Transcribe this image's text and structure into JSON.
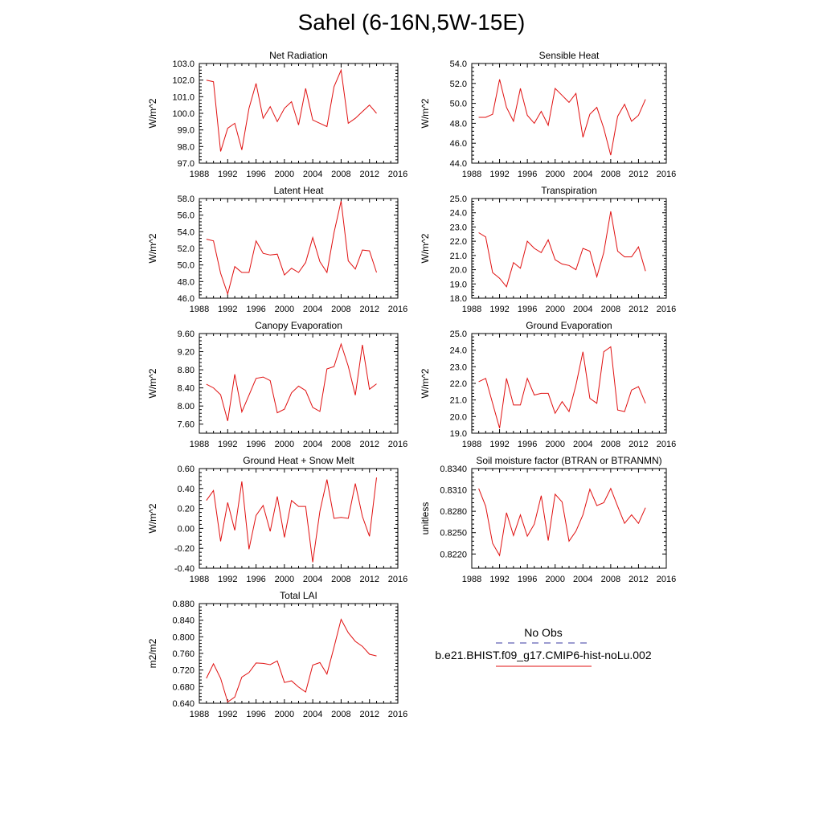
{
  "title": "Sahel (6-16N,5W-15E)",
  "legend": {
    "entries": [
      {
        "label": "No Obs",
        "color": "#3a3aa0",
        "dash": true
      },
      {
        "label": "b.e21.BHIST.f09_g17.CMIP6-hist-noLu.002",
        "color": "#e01010",
        "dash": false
      }
    ]
  },
  "chart_data": [
    {
      "type": "line",
      "title": "Net Radiation",
      "ylabel": "W/m^2",
      "xlim": [
        1988,
        2016
      ],
      "xticks": [
        "1988",
        "1992",
        "1996",
        "2000",
        "2004",
        "2008",
        "2012",
        "2016"
      ],
      "ylim": [
        97.0,
        103.0
      ],
      "yticks": [
        "97.0",
        "98.0",
        "99.0",
        "100.0",
        "101.0",
        "102.0",
        "103.0"
      ],
      "x": [
        1989,
        1990,
        1991,
        1992,
        1993,
        1994,
        1995,
        1996,
        1997,
        1998,
        1999,
        2000,
        2001,
        2002,
        2003,
        2004,
        2005,
        2006,
        2007,
        2008,
        2009,
        2010,
        2011,
        2012,
        2013
      ],
      "series": [
        {
          "color": "#e01010",
          "values": [
            102.0,
            101.9,
            97.7,
            99.1,
            99.4,
            97.8,
            100.3,
            101.8,
            99.7,
            100.4,
            99.5,
            100.3,
            100.7,
            99.3,
            101.5,
            99.6,
            99.4,
            99.2,
            101.6,
            102.6,
            99.4,
            99.7,
            100.1,
            100.5,
            100.0
          ]
        }
      ]
    },
    {
      "type": "line",
      "title": "Sensible Heat",
      "ylabel": "W/m^2",
      "xlim": [
        1988,
        2016
      ],
      "xticks": [
        "1988",
        "1992",
        "1996",
        "2000",
        "2004",
        "2008",
        "2012",
        "2016"
      ],
      "ylim": [
        44.0,
        54.0
      ],
      "yticks": [
        "44.0",
        "46.0",
        "48.0",
        "50.0",
        "52.0",
        "54.0"
      ],
      "x": [
        1989,
        1990,
        1991,
        1992,
        1993,
        1994,
        1995,
        1996,
        1997,
        1998,
        1999,
        2000,
        2001,
        2002,
        2003,
        2004,
        2005,
        2006,
        2007,
        2008,
        2009,
        2010,
        2011,
        2012,
        2013
      ],
      "series": [
        {
          "color": "#e01010",
          "values": [
            48.6,
            48.6,
            48.9,
            52.4,
            49.6,
            48.2,
            51.5,
            48.8,
            48.0,
            49.2,
            47.8,
            51.5,
            50.8,
            50.1,
            51.0,
            46.6,
            48.9,
            49.6,
            47.5,
            44.8,
            48.7,
            49.9,
            48.2,
            48.8,
            50.4
          ]
        }
      ]
    },
    {
      "type": "line",
      "title": "Latent Heat",
      "ylabel": "W/m^2",
      "xlim": [
        1988,
        2016
      ],
      "xticks": [
        "1988",
        "1992",
        "1996",
        "2000",
        "2004",
        "2008",
        "2012",
        "2016"
      ],
      "ylim": [
        46.0,
        58.0
      ],
      "yticks": [
        "46.0",
        "48.0",
        "50.0",
        "52.0",
        "54.0",
        "56.0",
        "58.0"
      ],
      "x": [
        1989,
        1990,
        1991,
        1992,
        1993,
        1994,
        1995,
        1996,
        1997,
        1998,
        1999,
        2000,
        2001,
        2002,
        2003,
        2004,
        2005,
        2006,
        2007,
        2008,
        2009,
        2010,
        2011,
        2012,
        2013
      ],
      "series": [
        {
          "color": "#e01010",
          "values": [
            53.1,
            52.9,
            49.0,
            46.5,
            49.8,
            49.1,
            49.1,
            52.9,
            51.4,
            51.2,
            51.3,
            48.8,
            49.6,
            49.1,
            50.3,
            53.3,
            50.4,
            49.1,
            53.9,
            57.7,
            50.5,
            49.5,
            51.8,
            51.7,
            49.1
          ]
        }
      ]
    },
    {
      "type": "line",
      "title": "Transpiration",
      "ylabel": "W/m^2",
      "xlim": [
        1988,
        2016
      ],
      "xticks": [
        "1988",
        "1992",
        "1996",
        "2000",
        "2004",
        "2008",
        "2012",
        "2016"
      ],
      "ylim": [
        18.0,
        25.0
      ],
      "yticks": [
        "18.0",
        "19.0",
        "20.0",
        "21.0",
        "22.0",
        "23.0",
        "24.0",
        "25.0"
      ],
      "x": [
        1989,
        1990,
        1991,
        1992,
        1993,
        1994,
        1995,
        1996,
        1997,
        1998,
        1999,
        2000,
        2001,
        2002,
        2003,
        2004,
        2005,
        2006,
        2007,
        2008,
        2009,
        2010,
        2011,
        2012,
        2013
      ],
      "series": [
        {
          "color": "#e01010",
          "values": [
            22.6,
            22.3,
            19.8,
            19.4,
            18.8,
            20.5,
            20.1,
            22.0,
            21.5,
            21.2,
            22.1,
            20.7,
            20.4,
            20.3,
            20.0,
            21.5,
            21.3,
            19.5,
            21.2,
            24.1,
            21.3,
            20.9,
            20.9,
            21.6,
            19.9
          ]
        }
      ]
    },
    {
      "type": "line",
      "title": "Canopy Evaporation",
      "ylabel": "W/m^2",
      "xlim": [
        1988,
        2016
      ],
      "xticks": [
        "1988",
        "1992",
        "1996",
        "2000",
        "2004",
        "2008",
        "2012",
        "2016"
      ],
      "ylim": [
        7.4,
        9.6
      ],
      "yticks": [
        "7.60",
        "8.00",
        "8.40",
        "8.80",
        "9.20",
        "9.60"
      ],
      "ytick_values": [
        7.6,
        8.0,
        8.4,
        8.8,
        9.2,
        9.6
      ],
      "x": [
        1989,
        1990,
        1991,
        1992,
        1993,
        1994,
        1995,
        1996,
        1997,
        1998,
        1999,
        2000,
        2001,
        2002,
        2003,
        2004,
        2005,
        2006,
        2007,
        2008,
        2009,
        2010,
        2011,
        2012,
        2013
      ],
      "series": [
        {
          "color": "#e01010",
          "values": [
            8.48,
            8.4,
            8.25,
            7.67,
            8.7,
            7.87,
            8.24,
            8.61,
            8.64,
            8.56,
            7.85,
            7.93,
            8.29,
            8.44,
            8.34,
            7.97,
            7.88,
            8.82,
            8.87,
            9.37,
            8.88,
            8.24,
            9.35,
            8.37,
            8.49
          ]
        }
      ]
    },
    {
      "type": "line",
      "title": "Ground Evaporation",
      "ylabel": "W/m^2",
      "xlim": [
        1988,
        2016
      ],
      "xticks": [
        "1988",
        "1992",
        "1996",
        "2000",
        "2004",
        "2008",
        "2012",
        "2016"
      ],
      "ylim": [
        19.0,
        25.0
      ],
      "yticks": [
        "19.0",
        "20.0",
        "21.0",
        "22.0",
        "23.0",
        "24.0",
        "25.0"
      ],
      "x": [
        1989,
        1990,
        1991,
        1992,
        1993,
        1994,
        1995,
        1996,
        1997,
        1998,
        1999,
        2000,
        2001,
        2002,
        2003,
        2004,
        2005,
        2006,
        2007,
        2008,
        2009,
        2010,
        2011,
        2012,
        2013
      ],
      "series": [
        {
          "color": "#e01010",
          "values": [
            22.1,
            22.3,
            20.8,
            19.3,
            22.3,
            20.7,
            20.7,
            22.3,
            21.3,
            21.4,
            21.4,
            20.2,
            20.9,
            20.3,
            21.9,
            23.9,
            21.1,
            20.8,
            23.9,
            24.2,
            20.4,
            20.3,
            21.6,
            21.8,
            20.8
          ]
        }
      ]
    },
    {
      "type": "line",
      "title": "Ground Heat + Snow Melt",
      "ylabel": "W/m^2",
      "xlim": [
        1988,
        2016
      ],
      "xticks": [
        "1988",
        "1992",
        "1996",
        "2000",
        "2004",
        "2008",
        "2012",
        "2016"
      ],
      "ylim": [
        -0.4,
        0.6
      ],
      "yticks": [
        "-0.40",
        "-0.20",
        "0.00",
        "0.20",
        "0.40",
        "0.60"
      ],
      "ytick_values": [
        -0.4,
        -0.2,
        0.0,
        0.2,
        0.4,
        0.6
      ],
      "x": [
        1989,
        1990,
        1991,
        1992,
        1993,
        1994,
        1995,
        1996,
        1997,
        1998,
        1999,
        2000,
        2001,
        2002,
        2003,
        2004,
        2005,
        2006,
        2007,
        2008,
        2009,
        2010,
        2011,
        2012,
        2013
      ],
      "series": [
        {
          "color": "#e01010",
          "values": [
            0.28,
            0.38,
            -0.13,
            0.26,
            -0.02,
            0.47,
            -0.21,
            0.13,
            0.23,
            -0.03,
            0.32,
            -0.09,
            0.28,
            0.22,
            0.22,
            -0.34,
            0.17,
            0.49,
            0.1,
            0.11,
            0.1,
            0.45,
            0.12,
            -0.08,
            0.51
          ]
        }
      ]
    },
    {
      "type": "line",
      "title": "Soil moisture factor (BTRAN or BTRANMN)",
      "ylabel": "unitless",
      "xlim": [
        1988,
        2016
      ],
      "xticks": [
        "1988",
        "1992",
        "1996",
        "2000",
        "2004",
        "2008",
        "2012",
        "2016"
      ],
      "ylim": [
        0.82,
        0.834
      ],
      "yticks": [
        "0.8220",
        "0.8250",
        "0.8280",
        "0.8310",
        "0.8340"
      ],
      "ytick_values": [
        0.822,
        0.825,
        0.828,
        0.831,
        0.834
      ],
      "x": [
        1989,
        1990,
        1991,
        1992,
        1993,
        1994,
        1995,
        1996,
        1997,
        1998,
        1999,
        2000,
        2001,
        2002,
        2003,
        2004,
        2005,
        2006,
        2007,
        2008,
        2009,
        2010,
        2011,
        2012,
        2013
      ],
      "series": [
        {
          "color": "#e01010",
          "values": [
            0.8312,
            0.8287,
            0.8235,
            0.8218,
            0.8278,
            0.8246,
            0.8275,
            0.8245,
            0.8262,
            0.8302,
            0.8239,
            0.8304,
            0.8293,
            0.8238,
            0.8252,
            0.8275,
            0.8311,
            0.8288,
            0.8292,
            0.8312,
            0.8287,
            0.8263,
            0.8275,
            0.8263,
            0.8285
          ]
        }
      ]
    },
    {
      "type": "line",
      "title": "Total LAI",
      "ylabel": "m2/m2",
      "xlim": [
        1988,
        2016
      ],
      "xticks": [
        "1988",
        "1992",
        "1996",
        "2000",
        "2004",
        "2008",
        "2012",
        "2016"
      ],
      "ylim": [
        0.64,
        0.88
      ],
      "yticks": [
        "0.640",
        "0.680",
        "0.720",
        "0.760",
        "0.800",
        "0.840",
        "0.880"
      ],
      "ytick_values": [
        0.64,
        0.68,
        0.72,
        0.76,
        0.8,
        0.84,
        0.88
      ],
      "x": [
        1989,
        1990,
        1991,
        1992,
        1993,
        1994,
        1995,
        1996,
        1997,
        1998,
        1999,
        2000,
        2001,
        2002,
        2003,
        2004,
        2005,
        2006,
        2007,
        2008,
        2009,
        2010,
        2011,
        2012,
        2013
      ],
      "series": [
        {
          "color": "#e01010",
          "values": [
            0.7,
            0.735,
            0.7,
            0.643,
            0.655,
            0.703,
            0.714,
            0.737,
            0.736,
            0.733,
            0.742,
            0.69,
            0.694,
            0.679,
            0.667,
            0.732,
            0.738,
            0.71,
            0.775,
            0.842,
            0.81,
            0.789,
            0.777,
            0.758,
            0.754
          ]
        }
      ]
    }
  ]
}
